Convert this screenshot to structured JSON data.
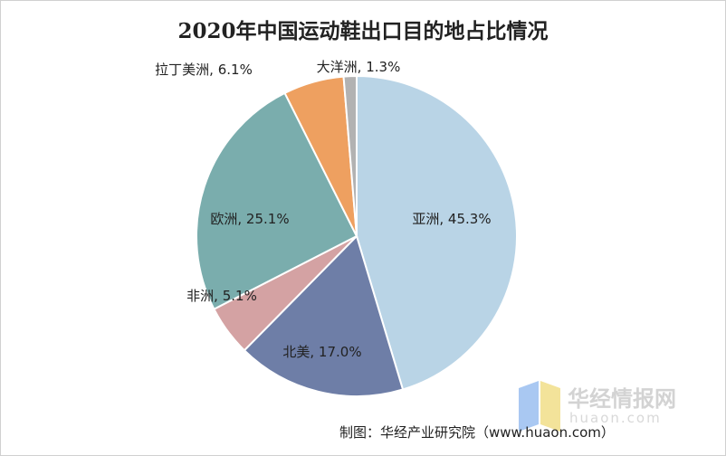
{
  "chart_data": {
    "type": "pie",
    "title": "2020年中国运动鞋出口目的地占比情况",
    "slices": [
      {
        "name": "亚洲",
        "label": "亚洲, 45.3%",
        "value": 45.3,
        "color": "#b9d4e6"
      },
      {
        "name": "北美",
        "label": "北美, 17.0%",
        "value": 17.0,
        "color": "#6e7ea7"
      },
      {
        "name": "非洲",
        "label": "非洲, 5.1%",
        "value": 5.1,
        "color": "#d4a2a3"
      },
      {
        "name": "欧洲",
        "label": "欧洲, 25.1%",
        "value": 25.1,
        "color": "#7aadad"
      },
      {
        "name": "拉丁美洲",
        "label": "拉丁美洲, 6.1%",
        "value": 6.1,
        "color": "#eea060"
      },
      {
        "name": "大洋洲",
        "label": "大洋洲, 1.3%",
        "value": 1.3,
        "color": "#b2b2b2"
      }
    ],
    "start_direction": "12 o'clock",
    "direction": "clockwise"
  },
  "credit": "制图：华经产业研究院（www.huaon.com）",
  "watermark": {
    "text": "华经情报网",
    "url": "huaon.com",
    "colors": [
      "#a9c8f2",
      "#f3e39a"
    ]
  }
}
